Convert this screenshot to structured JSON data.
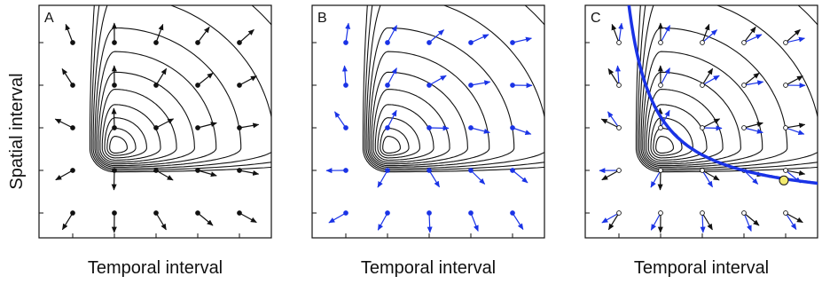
{
  "ylabel": "Spatial interval",
  "colors": {
    "contour": "#111111",
    "black_arrow": "#111111",
    "blue_arrow": "#1a33e6",
    "blue_curve": "#1a33e6",
    "marker_fill": "#f2ea6e"
  },
  "chart_data": [
    {
      "type": "contour",
      "panel": "A",
      "label": "A",
      "xlabel": "Temporal interval",
      "grid": false,
      "legend": "none",
      "ticks_x_count": 5,
      "ticks_y_count": 5,
      "arrows": [
        "black"
      ],
      "points": "filled-black",
      "curve": null
    },
    {
      "type": "contour",
      "panel": "B",
      "label": "B",
      "xlabel": "Temporal interval",
      "grid": false,
      "legend": "none",
      "ticks_x_count": 5,
      "ticks_y_count": 5,
      "arrows": [
        "blue"
      ],
      "points": "filled-blue",
      "curve": null
    },
    {
      "type": "contour",
      "panel": "C",
      "label": "C",
      "xlabel": "Temporal interval",
      "grid": false,
      "legend": "none",
      "ticks_x_count": 5,
      "ticks_y_count": 5,
      "arrows": [
        "black",
        "blue"
      ],
      "points": "open",
      "curve": "hyperbolic",
      "curve_markers": 2
    }
  ]
}
